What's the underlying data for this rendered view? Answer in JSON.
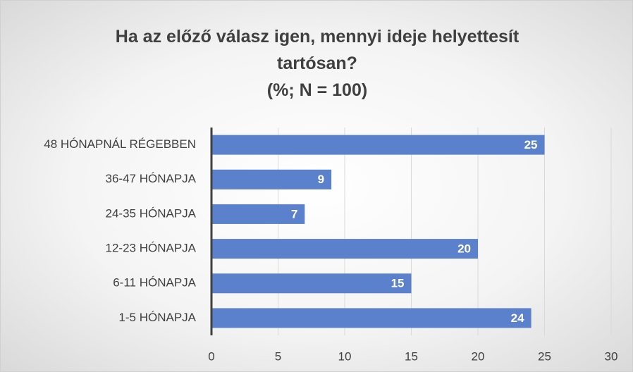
{
  "chart_data": {
    "type": "bar",
    "orientation": "horizontal",
    "title": "Ha az előző válasz igen, mennyi ideje helyettesít tartósan?",
    "subtitle": "(%; N = 100)",
    "categories": [
      "48 HÓNAPNÁL RÉGEBBEN",
      "36-47 HÓNAPJA",
      "24-35 HÓNAPJA",
      "12-23 HÓNAPJA",
      "6-11 HÓNAPJA",
      "1-5 HÓNAPJA"
    ],
    "values": [
      25,
      9,
      7,
      20,
      15,
      24
    ],
    "color": "#5b80cc",
    "xlim": [
      0,
      30
    ],
    "xticks": [
      0,
      5,
      10,
      15,
      20,
      25,
      30
    ],
    "grid": true
  }
}
